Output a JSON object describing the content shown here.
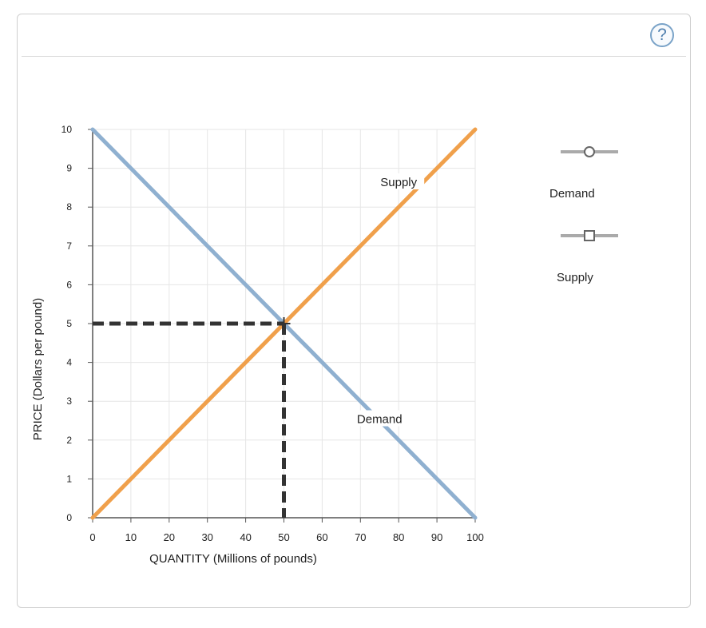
{
  "help": {
    "label": "?"
  },
  "legend": {
    "items": [
      {
        "label": "Demand",
        "marker": "circle-marker-icon",
        "color": "#aaaaaa"
      },
      {
        "label": "Supply",
        "marker": "square-marker-icon",
        "color": "#aaaaaa"
      }
    ]
  },
  "colors": {
    "demand": "#8fb0d0",
    "supply": "#f0a04b",
    "equilibrium": "#333333",
    "grid": "#e6e6e6",
    "axis": "#555555"
  },
  "chart_data": {
    "type": "line",
    "xlabel": "QUANTITY (Millions of pounds)",
    "ylabel": "PRICE (Dollars per pound)",
    "xlim": [
      0,
      100
    ],
    "ylim": [
      0,
      10
    ],
    "x_ticks": [
      0,
      10,
      20,
      30,
      40,
      50,
      60,
      70,
      80,
      90,
      100
    ],
    "y_ticks": [
      0,
      1,
      2,
      3,
      4,
      5,
      6,
      7,
      8,
      9,
      10
    ],
    "grid": true,
    "series": [
      {
        "name": "Demand",
        "points": [
          [
            0,
            10
          ],
          [
            100,
            0
          ]
        ]
      },
      {
        "name": "Supply",
        "points": [
          [
            0,
            0
          ],
          [
            100,
            10
          ]
        ]
      }
    ],
    "equilibrium": {
      "x": 50,
      "y": 5
    },
    "annotations": [
      {
        "text": "Supply",
        "x": 80,
        "y": 8.6
      },
      {
        "text": "Demand",
        "x": 75,
        "y": 2.5
      }
    ]
  }
}
